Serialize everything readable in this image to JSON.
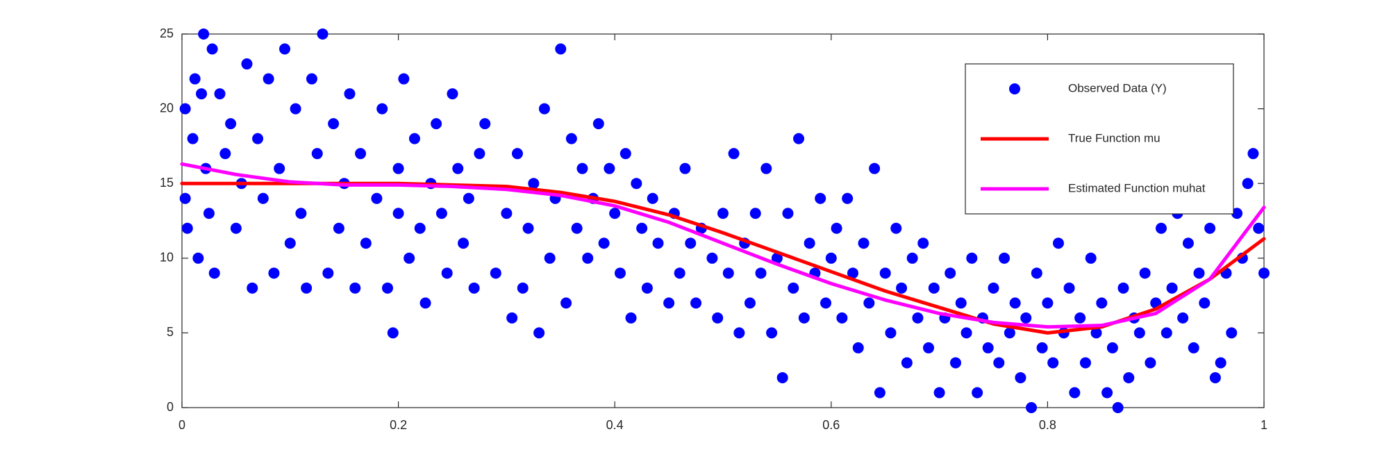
{
  "chart_data": {
    "type": "scatter",
    "xlim": [
      0,
      1
    ],
    "ylim": [
      0,
      25
    ],
    "xticks": [
      0,
      0.2,
      0.4,
      0.6,
      0.8,
      1
    ],
    "yticks": [
      0,
      5,
      10,
      15,
      20,
      25
    ],
    "legend": "northeast",
    "series": [
      {
        "name": "Observed Data (Y)",
        "type": "scatter",
        "color": "#0000ff",
        "x": [
          0.003,
          0.003,
          0.005,
          0.01,
          0.012,
          0.015,
          0.018,
          0.02,
          0.022,
          0.025,
          0.028,
          0.03,
          0.035,
          0.04,
          0.045,
          0.05,
          0.055,
          0.06,
          0.065,
          0.07,
          0.075,
          0.08,
          0.085,
          0.09,
          0.095,
          0.1,
          0.105,
          0.11,
          0.115,
          0.12,
          0.125,
          0.13,
          0.135,
          0.14,
          0.145,
          0.15,
          0.155,
          0.16,
          0.165,
          0.17,
          0.18,
          0.185,
          0.19,
          0.195,
          0.2,
          0.2,
          0.205,
          0.21,
          0.215,
          0.22,
          0.225,
          0.23,
          0.235,
          0.24,
          0.245,
          0.25,
          0.255,
          0.26,
          0.265,
          0.27,
          0.275,
          0.28,
          0.29,
          0.3,
          0.305,
          0.31,
          0.315,
          0.32,
          0.325,
          0.33,
          0.335,
          0.34,
          0.345,
          0.35,
          0.355,
          0.36,
          0.365,
          0.37,
          0.375,
          0.38,
          0.385,
          0.39,
          0.395,
          0.4,
          0.405,
          0.41,
          0.415,
          0.42,
          0.425,
          0.43,
          0.435,
          0.44,
          0.45,
          0.455,
          0.46,
          0.465,
          0.47,
          0.475,
          0.48,
          0.49,
          0.495,
          0.5,
          0.505,
          0.51,
          0.515,
          0.52,
          0.525,
          0.53,
          0.535,
          0.54,
          0.545,
          0.55,
          0.555,
          0.56,
          0.565,
          0.57,
          0.575,
          0.58,
          0.585,
          0.59,
          0.595,
          0.6,
          0.605,
          0.61,
          0.615,
          0.62,
          0.625,
          0.63,
          0.635,
          0.64,
          0.645,
          0.65,
          0.655,
          0.66,
          0.665,
          0.67,
          0.675,
          0.68,
          0.685,
          0.69,
          0.695,
          0.7,
          0.705,
          0.71,
          0.715,
          0.72,
          0.725,
          0.73,
          0.735,
          0.74,
          0.745,
          0.75,
          0.755,
          0.76,
          0.765,
          0.77,
          0.775,
          0.78,
          0.785,
          0.79,
          0.795,
          0.8,
          0.805,
          0.81,
          0.815,
          0.82,
          0.825,
          0.83,
          0.835,
          0.84,
          0.845,
          0.85,
          0.855,
          0.86,
          0.865,
          0.87,
          0.875,
          0.88,
          0.885,
          0.89,
          0.895,
          0.9,
          0.905,
          0.91,
          0.915,
          0.92,
          0.925,
          0.93,
          0.935,
          0.94,
          0.945,
          0.95,
          0.955,
          0.96,
          0.965,
          0.97,
          0.975,
          0.98,
          0.985,
          0.99,
          0.995,
          1.0
        ],
        "values": [
          14,
          20,
          12,
          18,
          22,
          10,
          21,
          25,
          16,
          13,
          24,
          9,
          21,
          17,
          19,
          12,
          15,
          23,
          8,
          18,
          14,
          22,
          9,
          16,
          24,
          11,
          20,
          13,
          8,
          22,
          17,
          25,
          9,
          19,
          12,
          15,
          21,
          8,
          17,
          11,
          14,
          20,
          8,
          5,
          16,
          13,
          22,
          10,
          18,
          12,
          7,
          15,
          19,
          13,
          9,
          21,
          16,
          11,
          14,
          8,
          17,
          19,
          9,
          13,
          6,
          17,
          8,
          12,
          15,
          5,
          20,
          10,
          14,
          24,
          7,
          18,
          12,
          16,
          10,
          14,
          19,
          11,
          16,
          13,
          9,
          17,
          6,
          15,
          12,
          8,
          14,
          11,
          7,
          13,
          9,
          16,
          11,
          7,
          12,
          10,
          6,
          13,
          9,
          17,
          5,
          11,
          7,
          13,
          9,
          16,
          5,
          10,
          2,
          13,
          8,
          18,
          6,
          11,
          9,
          14,
          7,
          10,
          12,
          6,
          14,
          9,
          4,
          11,
          7,
          16,
          1,
          9,
          5,
          12,
          8,
          3,
          10,
          6,
          11,
          4,
          8,
          1,
          6,
          9,
          3,
          7,
          5,
          10,
          1,
          6,
          4,
          8,
          3,
          10,
          5,
          7,
          2,
          6,
          0,
          9,
          4,
          7,
          3,
          11,
          5,
          8,
          1,
          6,
          3,
          10,
          5,
          7,
          1,
          4,
          0,
          8,
          2,
          6,
          5,
          9,
          3,
          7,
          12,
          5,
          8,
          13,
          6,
          11,
          4,
          9,
          7,
          12,
          2,
          3,
          9,
          5,
          13,
          10,
          15,
          17,
          12,
          9
        ]
      },
      {
        "name": "True Function mu",
        "type": "line",
        "color": "#ff0000",
        "x": [
          0,
          0.05,
          0.1,
          0.15,
          0.2,
          0.25,
          0.3,
          0.35,
          0.4,
          0.45,
          0.5,
          0.55,
          0.6,
          0.65,
          0.7,
          0.75,
          0.8,
          0.85,
          0.9,
          0.95,
          1
        ],
        "values": [
          15,
          15,
          15,
          15,
          15,
          14.9,
          14.8,
          14.4,
          13.8,
          12.9,
          11.7,
          10.4,
          9.1,
          7.8,
          6.7,
          5.6,
          5.0,
          5.4,
          6.6,
          8.6,
          11.3
        ]
      },
      {
        "name": "Estimated Function muhat",
        "type": "line",
        "color": "#ff00ff",
        "x": [
          0,
          0.05,
          0.1,
          0.15,
          0.2,
          0.25,
          0.3,
          0.35,
          0.4,
          0.45,
          0.5,
          0.55,
          0.6,
          0.65,
          0.7,
          0.75,
          0.8,
          0.85,
          0.9,
          0.95,
          1
        ],
        "values": [
          16.3,
          15.6,
          15.1,
          14.9,
          14.9,
          14.8,
          14.6,
          14.2,
          13.5,
          12.4,
          11.0,
          9.6,
          8.3,
          7.2,
          6.3,
          5.7,
          5.4,
          5.5,
          6.3,
          8.6,
          13.4
        ]
      }
    ]
  }
}
